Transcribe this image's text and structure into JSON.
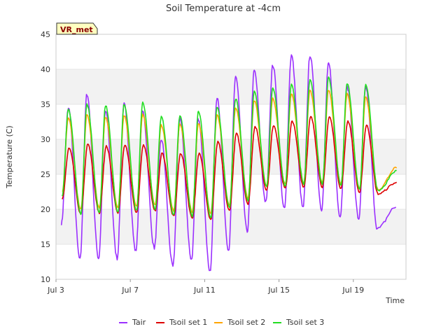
{
  "chart_data": {
    "type": "line",
    "title": "Soil Temperature at -4cm",
    "xlabel": "Time",
    "ylabel": "Temperature (C)",
    "badge": "VR_met",
    "ylim": [
      10,
      45
    ],
    "y_ticks": [
      10,
      15,
      20,
      25,
      30,
      35,
      40,
      45
    ],
    "xlim": [
      "2024-07-03T00:00",
      "2024-07-21T20:00"
    ],
    "x_ticks": [
      {
        "date": "2024-07-03",
        "label": "Jul 3"
      },
      {
        "date": "2024-07-07",
        "label": "Jul 7"
      },
      {
        "date": "2024-07-11",
        "label": "Jul 11"
      },
      {
        "date": "2024-07-15",
        "label": "Jul 15"
      },
      {
        "date": "2024-07-19",
        "label": "Jul 19"
      }
    ],
    "band_fill": "#f2f2f2",
    "grid": true,
    "legend_position": "bottom",
    "start_time": "2024-07-03T07:00",
    "end_time": "2024-07-21T15:00",
    "series": [
      {
        "name": "Tair",
        "color": "#9b30ff",
        "peaks": [
          {
            "x": "2024-07-03T16:00",
            "y": 34.5
          },
          {
            "x": "2024-07-04T16:00",
            "y": 36.5
          },
          {
            "x": "2024-07-05T16:00",
            "y": 34.0
          },
          {
            "x": "2024-07-06T16:00",
            "y": 35.0
          },
          {
            "x": "2024-07-07T16:00",
            "y": 34.0
          },
          {
            "x": "2024-07-08T16:00",
            "y": 30.0
          },
          {
            "x": "2024-07-09T16:00",
            "y": 33.0
          },
          {
            "x": "2024-07-10T16:00",
            "y": 33.0
          },
          {
            "x": "2024-07-11T16:00",
            "y": 36.0
          },
          {
            "x": "2024-07-12T16:00",
            "y": 39.0
          },
          {
            "x": "2024-07-13T16:00",
            "y": 39.8
          },
          {
            "x": "2024-07-14T16:00",
            "y": 40.6
          },
          {
            "x": "2024-07-15T16:00",
            "y": 42.0
          },
          {
            "x": "2024-07-16T16:00",
            "y": 42.0
          },
          {
            "x": "2024-07-17T16:00",
            "y": 40.8
          },
          {
            "x": "2024-07-18T16:00",
            "y": 37.5
          },
          {
            "x": "2024-07-19T16:00",
            "y": 37.5
          }
        ],
        "troughs": [
          {
            "x": "2024-07-03T07:00",
            "y": 18.0
          },
          {
            "x": "2024-07-04T07:00",
            "y": 12.8
          },
          {
            "x": "2024-07-05T07:00",
            "y": 13.0
          },
          {
            "x": "2024-07-06T07:00",
            "y": 13.0
          },
          {
            "x": "2024-07-07T07:00",
            "y": 14.0
          },
          {
            "x": "2024-07-08T07:00",
            "y": 14.5
          },
          {
            "x": "2024-07-09T07:00",
            "y": 11.8
          },
          {
            "x": "2024-07-10T07:00",
            "y": 12.8
          },
          {
            "x": "2024-07-11T07:00",
            "y": 11.0
          },
          {
            "x": "2024-07-12T07:00",
            "y": 14.2
          },
          {
            "x": "2024-07-13T07:00",
            "y": 16.8
          },
          {
            "x": "2024-07-14T07:00",
            "y": 21.0
          },
          {
            "x": "2024-07-15T07:00",
            "y": 20.0
          },
          {
            "x": "2024-07-16T07:00",
            "y": 20.2
          },
          {
            "x": "2024-07-17T07:00",
            "y": 20.0
          },
          {
            "x": "2024-07-18T07:00",
            "y": 19.0
          },
          {
            "x": "2024-07-19T07:00",
            "y": 18.6
          },
          {
            "x": "2024-07-20T07:00",
            "y": 17.2
          },
          {
            "x": "2024-07-21T07:00",
            "y": 20.3
          }
        ]
      },
      {
        "name": "Tsoil set 1",
        "color": "#dd0000",
        "peaks": [
          {
            "x": "2024-07-03T17:00",
            "y": 28.8
          },
          {
            "x": "2024-07-04T17:00",
            "y": 29.3
          },
          {
            "x": "2024-07-05T17:00",
            "y": 29.0
          },
          {
            "x": "2024-07-06T17:00",
            "y": 29.2
          },
          {
            "x": "2024-07-07T17:00",
            "y": 29.2
          },
          {
            "x": "2024-07-08T17:00",
            "y": 28.0
          },
          {
            "x": "2024-07-09T17:00",
            "y": 28.0
          },
          {
            "x": "2024-07-10T17:00",
            "y": 28.0
          },
          {
            "x": "2024-07-11T17:00",
            "y": 29.6
          },
          {
            "x": "2024-07-12T17:00",
            "y": 30.8
          },
          {
            "x": "2024-07-13T17:00",
            "y": 31.8
          },
          {
            "x": "2024-07-14T17:00",
            "y": 32.0
          },
          {
            "x": "2024-07-15T17:00",
            "y": 32.6
          },
          {
            "x": "2024-07-16T17:00",
            "y": 33.2
          },
          {
            "x": "2024-07-17T17:00",
            "y": 33.2
          },
          {
            "x": "2024-07-18T17:00",
            "y": 32.6
          },
          {
            "x": "2024-07-19T17:00",
            "y": 32.0
          }
        ],
        "troughs": [
          {
            "x": "2024-07-03T08:00",
            "y": 21.5
          },
          {
            "x": "2024-07-04T08:00",
            "y": 19.4
          },
          {
            "x": "2024-07-05T08:00",
            "y": 19.5
          },
          {
            "x": "2024-07-06T08:00",
            "y": 19.5
          },
          {
            "x": "2024-07-07T08:00",
            "y": 19.6
          },
          {
            "x": "2024-07-08T08:00",
            "y": 19.8
          },
          {
            "x": "2024-07-09T08:00",
            "y": 19.0
          },
          {
            "x": "2024-07-10T08:00",
            "y": 18.8
          },
          {
            "x": "2024-07-11T08:00",
            "y": 18.5
          },
          {
            "x": "2024-07-12T08:00",
            "y": 19.8
          },
          {
            "x": "2024-07-13T08:00",
            "y": 20.8
          },
          {
            "x": "2024-07-14T08:00",
            "y": 22.8
          },
          {
            "x": "2024-07-15T08:00",
            "y": 23.0
          },
          {
            "x": "2024-07-16T08:00",
            "y": 23.2
          },
          {
            "x": "2024-07-17T08:00",
            "y": 23.2
          },
          {
            "x": "2024-07-18T08:00",
            "y": 23.0
          },
          {
            "x": "2024-07-19T08:00",
            "y": 22.4
          },
          {
            "x": "2024-07-20T08:00",
            "y": 22.2
          },
          {
            "x": "2024-07-21T08:00",
            "y": 23.8
          }
        ]
      },
      {
        "name": "Tsoil set 2",
        "color": "#ffa500",
        "peaks": [
          {
            "x": "2024-07-03T16:00",
            "y": 33.0
          },
          {
            "x": "2024-07-04T16:00",
            "y": 33.5
          },
          {
            "x": "2024-07-05T16:00",
            "y": 33.2
          },
          {
            "x": "2024-07-06T16:00",
            "y": 33.4
          },
          {
            "x": "2024-07-07T16:00",
            "y": 33.5
          },
          {
            "x": "2024-07-08T16:00",
            "y": 32.0
          },
          {
            "x": "2024-07-09T16:00",
            "y": 32.2
          },
          {
            "x": "2024-07-10T16:00",
            "y": 32.2
          },
          {
            "x": "2024-07-11T16:00",
            "y": 33.5
          },
          {
            "x": "2024-07-12T16:00",
            "y": 34.5
          },
          {
            "x": "2024-07-13T16:00",
            "y": 35.5
          },
          {
            "x": "2024-07-14T16:00",
            "y": 35.8
          },
          {
            "x": "2024-07-15T16:00",
            "y": 36.5
          },
          {
            "x": "2024-07-16T16:00",
            "y": 37.0
          },
          {
            "x": "2024-07-17T16:00",
            "y": 37.0
          },
          {
            "x": "2024-07-18T16:00",
            "y": 36.5
          },
          {
            "x": "2024-07-19T16:00",
            "y": 36.0
          }
        ],
        "troughs": [
          {
            "x": "2024-07-03T08:00",
            "y": 22.5
          },
          {
            "x": "2024-07-04T08:00",
            "y": 20.0
          },
          {
            "x": "2024-07-05T08:00",
            "y": 20.2
          },
          {
            "x": "2024-07-06T08:00",
            "y": 20.2
          },
          {
            "x": "2024-07-07T08:00",
            "y": 20.4
          },
          {
            "x": "2024-07-08T08:00",
            "y": 20.6
          },
          {
            "x": "2024-07-09T08:00",
            "y": 19.8
          },
          {
            "x": "2024-07-10T08:00",
            "y": 19.6
          },
          {
            "x": "2024-07-11T08:00",
            "y": 19.4
          },
          {
            "x": "2024-07-12T08:00",
            "y": 20.6
          },
          {
            "x": "2024-07-13T08:00",
            "y": 21.6
          },
          {
            "x": "2024-07-14T08:00",
            "y": 23.4
          },
          {
            "x": "2024-07-15T08:00",
            "y": 23.6
          },
          {
            "x": "2024-07-16T08:00",
            "y": 23.8
          },
          {
            "x": "2024-07-17T08:00",
            "y": 23.8
          },
          {
            "x": "2024-07-18T08:00",
            "y": 23.6
          },
          {
            "x": "2024-07-19T08:00",
            "y": 23.0
          },
          {
            "x": "2024-07-20T08:00",
            "y": 22.8
          },
          {
            "x": "2024-07-21T08:00",
            "y": 26.0
          }
        ]
      },
      {
        "name": "Tsoil set 3",
        "color": "#22dd22",
        "peaks": [
          {
            "x": "2024-07-03T16:00",
            "y": 34.3
          },
          {
            "x": "2024-07-04T16:00",
            "y": 35.0
          },
          {
            "x": "2024-07-05T16:00",
            "y": 34.8
          },
          {
            "x": "2024-07-06T16:00",
            "y": 35.0
          },
          {
            "x": "2024-07-07T16:00",
            "y": 35.2
          },
          {
            "x": "2024-07-08T16:00",
            "y": 33.2
          },
          {
            "x": "2024-07-09T16:00",
            "y": 33.3
          },
          {
            "x": "2024-07-10T16:00",
            "y": 34.0
          },
          {
            "x": "2024-07-11T16:00",
            "y": 34.5
          },
          {
            "x": "2024-07-12T16:00",
            "y": 35.8
          },
          {
            "x": "2024-07-13T16:00",
            "y": 36.8
          },
          {
            "x": "2024-07-14T16:00",
            "y": 37.3
          },
          {
            "x": "2024-07-15T16:00",
            "y": 37.8
          },
          {
            "x": "2024-07-16T16:00",
            "y": 38.5
          },
          {
            "x": "2024-07-17T16:00",
            "y": 38.8
          },
          {
            "x": "2024-07-18T16:00",
            "y": 38.0
          },
          {
            "x": "2024-07-19T16:00",
            "y": 37.8
          }
        ],
        "troughs": [
          {
            "x": "2024-07-03T08:00",
            "y": 21.8
          },
          {
            "x": "2024-07-04T08:00",
            "y": 19.3
          },
          {
            "x": "2024-07-05T08:00",
            "y": 19.5
          },
          {
            "x": "2024-07-06T08:00",
            "y": 19.6
          },
          {
            "x": "2024-07-07T08:00",
            "y": 19.8
          },
          {
            "x": "2024-07-08T08:00",
            "y": 20.0
          },
          {
            "x": "2024-07-09T08:00",
            "y": 19.2
          },
          {
            "x": "2024-07-10T08:00",
            "y": 19.0
          },
          {
            "x": "2024-07-11T08:00",
            "y": 18.8
          },
          {
            "x": "2024-07-12T08:00",
            "y": 20.2
          },
          {
            "x": "2024-07-13T08:00",
            "y": 21.2
          },
          {
            "x": "2024-07-14T08:00",
            "y": 23.2
          },
          {
            "x": "2024-07-15T08:00",
            "y": 23.4
          },
          {
            "x": "2024-07-16T08:00",
            "y": 23.6
          },
          {
            "x": "2024-07-17T08:00",
            "y": 23.6
          },
          {
            "x": "2024-07-18T08:00",
            "y": 23.4
          },
          {
            "x": "2024-07-19T08:00",
            "y": 22.8
          },
          {
            "x": "2024-07-20T08:00",
            "y": 22.6
          },
          {
            "x": "2024-07-21T08:00",
            "y": 25.5
          }
        ]
      }
    ]
  }
}
